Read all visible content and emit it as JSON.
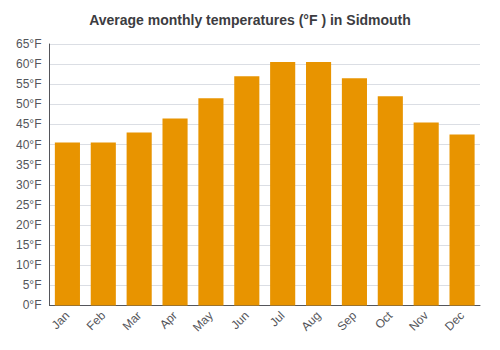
{
  "chart_data": {
    "type": "bar",
    "title": "Average monthly temperatures (°F ) in Sidmouth",
    "categories": [
      "Jan",
      "Feb",
      "Mar",
      "Apr",
      "May",
      "Jun",
      "Jul",
      "Aug",
      "Sep",
      "Oct",
      "Nov",
      "Dec"
    ],
    "values": [
      40.5,
      40.5,
      43.0,
      46.5,
      51.5,
      57.0,
      60.5,
      60.5,
      56.5,
      52.0,
      45.5,
      42.5
    ],
    "color": "#E89400",
    "ylim": [
      0,
      65
    ],
    "yticks": [
      {
        "value": 0,
        "label": "0°F"
      },
      {
        "value": 5,
        "label": "5°F"
      },
      {
        "value": 10,
        "label": "10°F"
      },
      {
        "value": 15,
        "label": "15°F"
      },
      {
        "value": 20,
        "label": "20°F"
      },
      {
        "value": 25,
        "label": "25°F"
      },
      {
        "value": 30,
        "label": "30°F"
      },
      {
        "value": 35,
        "label": "35°F"
      },
      {
        "value": 40,
        "label": "40°F"
      },
      {
        "value": 45,
        "label": "45°F"
      },
      {
        "value": 50,
        "label": "50°F"
      },
      {
        "value": 55,
        "label": "55°F"
      },
      {
        "value": 60,
        "label": "60°F"
      },
      {
        "value": 65,
        "label": "65°F"
      }
    ],
    "grid": true
  }
}
